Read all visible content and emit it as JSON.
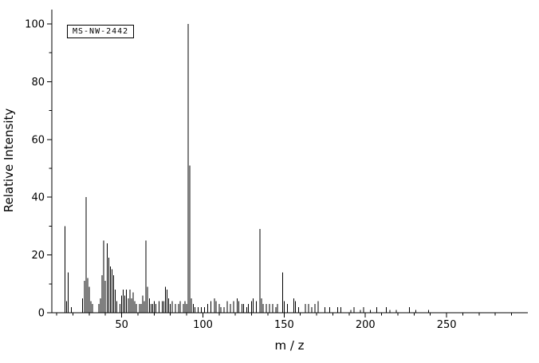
{
  "chart_data": {
    "type": "bar",
    "subtype": "mass-spectrum-stick-plot",
    "annotation": "MS-NW-2442",
    "xlabel": "m / z",
    "ylabel": "Relative Intensity",
    "xlim": [
      7,
      300
    ],
    "ylim": [
      0,
      100
    ],
    "x_major_ticks": [
      50,
      100,
      150,
      200,
      250
    ],
    "x_minor_step": 10,
    "y_major_ticks": [
      0,
      20,
      40,
      60,
      80,
      100
    ],
    "y_minor_step": 10,
    "grid": false,
    "legend": false,
    "colors": {
      "line": "#000000",
      "background": "#ffffff",
      "text": "#000000"
    },
    "peaks": [
      [
        15,
        30
      ],
      [
        16,
        4
      ],
      [
        17,
        14
      ],
      [
        19,
        2
      ],
      [
        26,
        5
      ],
      [
        27,
        11
      ],
      [
        28,
        40
      ],
      [
        29,
        12
      ],
      [
        30,
        9
      ],
      [
        31,
        4
      ],
      [
        32,
        3
      ],
      [
        36,
        3
      ],
      [
        37,
        5
      ],
      [
        38,
        13
      ],
      [
        39,
        25
      ],
      [
        40,
        11
      ],
      [
        41,
        24
      ],
      [
        42,
        19
      ],
      [
        43,
        16
      ],
      [
        44,
        15
      ],
      [
        45,
        13
      ],
      [
        46,
        8
      ],
      [
        47,
        4
      ],
      [
        49,
        3
      ],
      [
        50,
        6
      ],
      [
        51,
        8
      ],
      [
        52,
        6
      ],
      [
        53,
        8
      ],
      [
        54,
        5
      ],
      [
        55,
        8
      ],
      [
        56,
        5
      ],
      [
        57,
        7
      ],
      [
        58,
        4
      ],
      [
        59,
        3
      ],
      [
        61,
        3
      ],
      [
        62,
        3
      ],
      [
        63,
        6
      ],
      [
        64,
        4
      ],
      [
        65,
        25
      ],
      [
        66,
        9
      ],
      [
        67,
        5
      ],
      [
        68,
        3
      ],
      [
        69,
        3
      ],
      [
        70,
        4
      ],
      [
        71,
        3
      ],
      [
        73,
        4
      ],
      [
        75,
        4
      ],
      [
        76,
        4
      ],
      [
        77,
        9
      ],
      [
        78,
        8
      ],
      [
        79,
        5
      ],
      [
        80,
        3
      ],
      [
        81,
        4
      ],
      [
        83,
        3
      ],
      [
        85,
        3
      ],
      [
        86,
        4
      ],
      [
        88,
        3
      ],
      [
        89,
        4
      ],
      [
        90,
        3
      ],
      [
        91,
        100
      ],
      [
        92,
        51
      ],
      [
        93,
        5
      ],
      [
        94,
        3
      ],
      [
        95,
        2
      ],
      [
        97,
        2
      ],
      [
        99,
        2
      ],
      [
        101,
        2
      ],
      [
        103,
        3
      ],
      [
        105,
        4
      ],
      [
        107,
        5
      ],
      [
        108,
        4
      ],
      [
        110,
        3
      ],
      [
        111,
        2
      ],
      [
        113,
        2
      ],
      [
        115,
        4
      ],
      [
        117,
        3
      ],
      [
        119,
        4
      ],
      [
        121,
        5
      ],
      [
        122,
        4
      ],
      [
        124,
        3
      ],
      [
        125,
        3
      ],
      [
        127,
        2
      ],
      [
        128,
        3
      ],
      [
        130,
        4
      ],
      [
        131,
        5
      ],
      [
        133,
        4
      ],
      [
        135,
        29
      ],
      [
        136,
        5
      ],
      [
        137,
        3
      ],
      [
        139,
        3
      ],
      [
        141,
        3
      ],
      [
        143,
        3
      ],
      [
        145,
        2
      ],
      [
        146,
        3
      ],
      [
        149,
        14
      ],
      [
        150,
        4
      ],
      [
        152,
        3
      ],
      [
        156,
        5
      ],
      [
        157,
        4
      ],
      [
        159,
        2
      ],
      [
        163,
        3
      ],
      [
        165,
        3
      ],
      [
        167,
        2
      ],
      [
        169,
        3
      ],
      [
        171,
        4
      ],
      [
        175,
        2
      ],
      [
        178,
        2
      ],
      [
        183,
        2
      ],
      [
        185,
        2
      ],
      [
        191,
        1
      ],
      [
        193,
        2
      ],
      [
        197,
        1
      ],
      [
        199,
        2
      ],
      [
        203,
        1
      ],
      [
        207,
        2
      ],
      [
        213,
        2
      ],
      [
        215,
        1
      ],
      [
        219,
        1
      ],
      [
        227,
        2
      ],
      [
        231,
        1
      ],
      [
        239,
        1
      ]
    ]
  }
}
